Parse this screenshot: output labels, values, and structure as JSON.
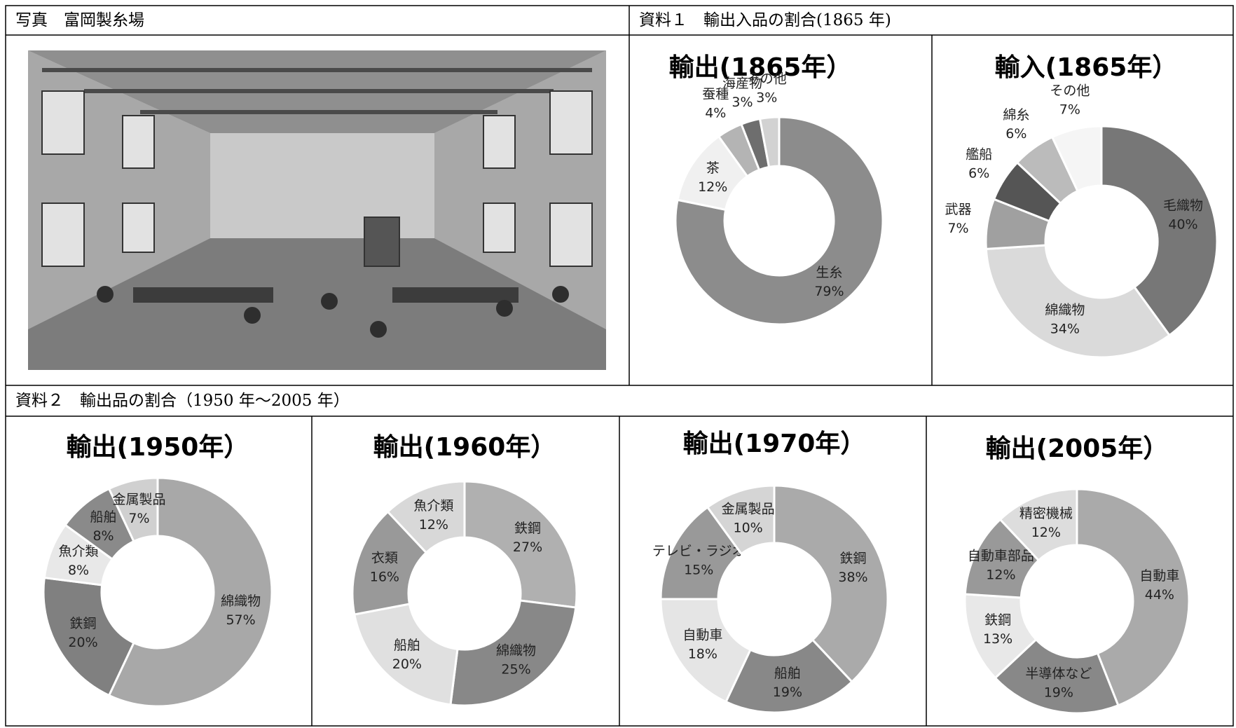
{
  "photo": {
    "title": "写真　富岡製糸場"
  },
  "material1": {
    "title": "資料１　輸出入品の割合(1865 年)"
  },
  "material2": {
    "title": "資料２　輸出品の割合（1950 年～2005 年）"
  },
  "chart_data": [
    {
      "type": "donut",
      "title": "輸出(1865年）",
      "categories": [
        "生糸",
        "茶",
        "蚕種",
        "海産物",
        "その他"
      ],
      "values": [
        79,
        12,
        4,
        3,
        3
      ],
      "value_labels": [
        "79%",
        "12%",
        "4%",
        "3%",
        "3%"
      ],
      "colors": [
        "#8c8c8c",
        "#f0f0f0",
        "#b4b4b4",
        "#6e6e6e",
        "#d2d2d2"
      ]
    },
    {
      "type": "donut",
      "title": "輸入(1865年）",
      "categories": [
        "毛織物",
        "綿織物",
        "武器",
        "艦船",
        "綿糸",
        "その他"
      ],
      "values": [
        40,
        34,
        7,
        6,
        6,
        7
      ],
      "value_labels": [
        "40%",
        "34%",
        "7%",
        "6%",
        "6%",
        "7%"
      ],
      "colors": [
        "#777777",
        "#dadada",
        "#a0a0a0",
        "#555555",
        "#bbbbbb",
        "#f5f5f5"
      ]
    },
    {
      "type": "donut",
      "title": "輸出(1950年）",
      "categories": [
        "綿織物",
        "鉄鋼",
        "魚介類",
        "船舶",
        "金属製品"
      ],
      "values": [
        57,
        20,
        8,
        8,
        7
      ],
      "value_labels": [
        "57%",
        "20%",
        "8%",
        "8%",
        "7%"
      ],
      "colors": [
        "#a8a8a8",
        "#808080",
        "#e8e8e8",
        "#8a8a8a",
        "#d0d0d0"
      ]
    },
    {
      "type": "donut",
      "title": "輸出(1960年）",
      "categories": [
        "鉄鋼",
        "綿織物",
        "船舶",
        "衣類",
        "魚介類"
      ],
      "values": [
        27,
        25,
        20,
        16,
        12
      ],
      "value_labels": [
        "27%",
        "25%",
        "20%",
        "16%",
        "12%"
      ],
      "colors": [
        "#b0b0b0",
        "#888888",
        "#e0e0e0",
        "#999999",
        "#d8d8d8"
      ]
    },
    {
      "type": "donut",
      "title": "輸出(1970年）",
      "categories": [
        "鉄鋼",
        "船舶",
        "自動車",
        "テレビ・ラジオ",
        "金属製品"
      ],
      "values": [
        38,
        19,
        18,
        15,
        10
      ],
      "value_labels": [
        "38%",
        "19%",
        "18%",
        "15%",
        "10%"
      ],
      "colors": [
        "#aaaaaa",
        "#888888",
        "#e5e5e5",
        "#999999",
        "#d5d5d5"
      ]
    },
    {
      "type": "donut",
      "title": "輸出(2005年）",
      "categories": [
        "自動車",
        "半導体など",
        "鉄鋼",
        "自動車部品",
        "精密機械"
      ],
      "values": [
        44,
        19,
        13,
        12,
        12
      ],
      "value_labels": [
        "44%",
        "19%",
        "13%",
        "12%",
        "12%"
      ],
      "colors": [
        "#aaaaaa",
        "#888888",
        "#e8e8e8",
        "#999999",
        "#dddddd"
      ]
    }
  ]
}
